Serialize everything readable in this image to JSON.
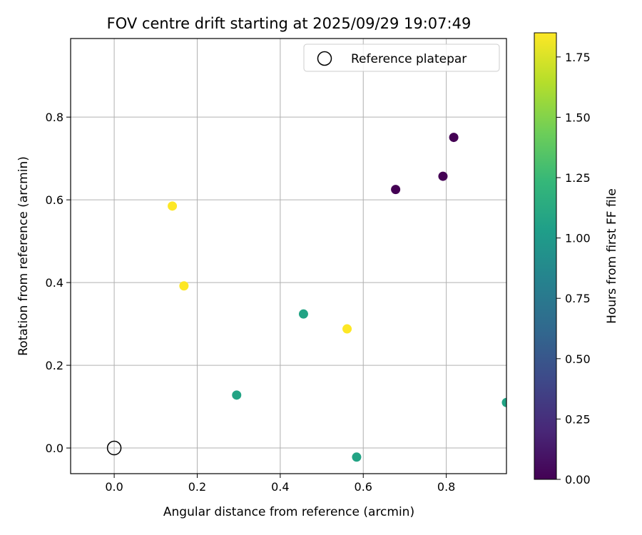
{
  "chart_data": {
    "type": "scatter",
    "title": "FOV centre drift starting at 2025/09/29 19:07:49",
    "xlabel": "Angular distance from reference (arcmin)",
    "ylabel": "Rotation from reference (arcmin)",
    "xlim": [
      -0.105,
      0.945
    ],
    "ylim": [
      -0.062,
      0.99
    ],
    "xticks": [
      0.0,
      0.2,
      0.4,
      0.6,
      0.8
    ],
    "xtick_labels": [
      "0.0",
      "0.2",
      "0.4",
      "0.6",
      "0.8"
    ],
    "yticks": [
      0.0,
      0.2,
      0.4,
      0.6,
      0.8
    ],
    "ytick_labels": [
      "0.0",
      "0.2",
      "0.4",
      "0.6",
      "0.8"
    ],
    "grid": true,
    "points": [
      {
        "x": 0.678,
        "y": 0.625,
        "hours": 0.0,
        "color": "#440154"
      },
      {
        "x": 0.792,
        "y": 0.657,
        "hours": 0.0,
        "color": "#440154"
      },
      {
        "x": 0.818,
        "y": 0.751,
        "hours": 0.0,
        "color": "#440154"
      },
      {
        "x": 0.295,
        "y": 0.128,
        "hours": 1.15,
        "color": "#22a384"
      },
      {
        "x": 0.456,
        "y": 0.324,
        "hours": 1.15,
        "color": "#22a384"
      },
      {
        "x": 0.584,
        "y": -0.022,
        "hours": 1.15,
        "color": "#22a384"
      },
      {
        "x": 0.945,
        "y": 0.11,
        "hours": 1.15,
        "color": "#22a384"
      },
      {
        "x": 0.14,
        "y": 0.585,
        "hours": 1.85,
        "color": "#fde725"
      },
      {
        "x": 0.168,
        "y": 0.392,
        "hours": 1.85,
        "color": "#fde725"
      },
      {
        "x": 0.561,
        "y": 0.288,
        "hours": 1.85,
        "color": "#fde725"
      }
    ],
    "reference_point": {
      "x": 0.0,
      "y": 0.0,
      "label": "Reference platepar"
    },
    "legend": {
      "location": "upper-right",
      "entries": [
        "Reference platepar"
      ]
    },
    "colorbar": {
      "label": "Hours from first FF file",
      "range": [
        0.0,
        1.85
      ],
      "ticks": [
        0.0,
        0.25,
        0.5,
        0.75,
        1.0,
        1.25,
        1.5,
        1.75
      ],
      "tick_labels": [
        "0.00",
        "0.25",
        "0.50",
        "0.75",
        "1.00",
        "1.25",
        "1.50",
        "1.75"
      ],
      "colormap": "viridis",
      "stops": [
        "#440154",
        "#482878",
        "#3e4989",
        "#31688e",
        "#26828e",
        "#1f9e89",
        "#35b779",
        "#6ece58",
        "#b5de2b",
        "#fde725"
      ]
    }
  }
}
